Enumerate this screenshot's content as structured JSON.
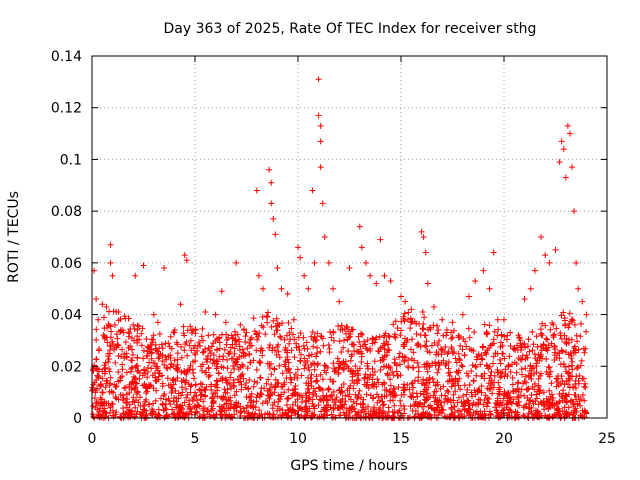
{
  "chart_data": {
    "type": "scatter",
    "title": "Day 363 of 2025, Rate Of TEC Index for receiver sthg",
    "xlabel": "GPS time / hours",
    "ylabel": "ROTI / TECUs",
    "xlim": [
      0,
      25
    ],
    "ylim": [
      0,
      0.14
    ],
    "xticks": [
      0,
      5,
      10,
      15,
      20,
      25
    ],
    "xtick_labels": [
      "0",
      "5",
      "10",
      "15",
      "20",
      "25"
    ],
    "yticks": [
      0,
      0.02,
      0.04,
      0.06,
      0.08,
      0.1,
      0.12,
      0.14
    ],
    "ytick_labels": [
      "0",
      "0.02",
      "0.04",
      "0.06",
      "0.08",
      "0.1",
      "0.12",
      "0.14"
    ],
    "grid": true,
    "marker": "+",
    "color": "#ff0000",
    "series": [
      {
        "name": "ROTI",
        "points": [
          [
            0.1,
            0.057
          ],
          [
            0.2,
            0.046
          ],
          [
            0.3,
            0.038
          ],
          [
            0.5,
            0.044
          ],
          [
            0.7,
            0.043
          ],
          [
            0.9,
            0.067
          ],
          [
            0.9,
            0.06
          ],
          [
            1.0,
            0.055
          ],
          [
            1.5,
            0.034
          ],
          [
            2.0,
            0.036
          ],
          [
            2.1,
            0.055
          ],
          [
            2.5,
            0.059
          ],
          [
            3.0,
            0.04
          ],
          [
            3.2,
            0.037
          ],
          [
            3.5,
            0.058
          ],
          [
            4.0,
            0.033
          ],
          [
            4.3,
            0.044
          ],
          [
            4.5,
            0.063
          ],
          [
            4.6,
            0.061
          ],
          [
            5.0,
            0.028
          ],
          [
            5.5,
            0.041
          ],
          [
            6.0,
            0.04
          ],
          [
            6.3,
            0.049
          ],
          [
            6.5,
            0.037
          ],
          [
            7.0,
            0.06
          ],
          [
            7.2,
            0.036
          ],
          [
            7.5,
            0.033
          ],
          [
            8.0,
            0.088
          ],
          [
            8.1,
            0.055
          ],
          [
            8.3,
            0.05
          ],
          [
            8.6,
            0.096
          ],
          [
            8.7,
            0.091
          ],
          [
            8.7,
            0.083
          ],
          [
            8.8,
            0.077
          ],
          [
            8.9,
            0.071
          ],
          [
            9.0,
            0.058
          ],
          [
            9.2,
            0.05
          ],
          [
            9.5,
            0.048
          ],
          [
            9.8,
            0.038
          ],
          [
            10.0,
            0.066
          ],
          [
            10.1,
            0.062
          ],
          [
            10.3,
            0.055
          ],
          [
            10.5,
            0.05
          ],
          [
            10.7,
            0.088
          ],
          [
            10.8,
            0.06
          ],
          [
            11.0,
            0.131
          ],
          [
            11.0,
            0.117
          ],
          [
            11.1,
            0.113
          ],
          [
            11.1,
            0.107
          ],
          [
            11.1,
            0.097
          ],
          [
            11.2,
            0.083
          ],
          [
            11.3,
            0.07
          ],
          [
            11.5,
            0.06
          ],
          [
            11.7,
            0.05
          ],
          [
            12.0,
            0.045
          ],
          [
            12.5,
            0.058
          ],
          [
            13.0,
            0.074
          ],
          [
            13.1,
            0.066
          ],
          [
            13.3,
            0.06
          ],
          [
            13.5,
            0.055
          ],
          [
            13.8,
            0.052
          ],
          [
            14.0,
            0.069
          ],
          [
            14.2,
            0.055
          ],
          [
            14.5,
            0.053
          ],
          [
            15.0,
            0.047
          ],
          [
            15.2,
            0.045
          ],
          [
            15.5,
            0.042
          ],
          [
            16.0,
            0.072
          ],
          [
            16.1,
            0.07
          ],
          [
            16.2,
            0.064
          ],
          [
            16.3,
            0.052
          ],
          [
            16.6,
            0.043
          ],
          [
            17.0,
            0.038
          ],
          [
            17.5,
            0.037
          ],
          [
            18.0,
            0.04
          ],
          [
            18.3,
            0.047
          ],
          [
            18.6,
            0.053
          ],
          [
            19.0,
            0.057
          ],
          [
            19.3,
            0.05
          ],
          [
            19.5,
            0.064
          ],
          [
            19.7,
            0.038
          ],
          [
            20.0,
            0.038
          ],
          [
            20.3,
            0.033
          ],
          [
            20.7,
            0.032
          ],
          [
            21.0,
            0.046
          ],
          [
            21.3,
            0.05
          ],
          [
            21.5,
            0.057
          ],
          [
            21.8,
            0.07
          ],
          [
            22.0,
            0.063
          ],
          [
            22.2,
            0.06
          ],
          [
            22.5,
            0.065
          ],
          [
            22.7,
            0.099
          ],
          [
            22.8,
            0.107
          ],
          [
            22.9,
            0.104
          ],
          [
            23.0,
            0.093
          ],
          [
            23.1,
            0.113
          ],
          [
            23.2,
            0.11
          ],
          [
            23.3,
            0.097
          ],
          [
            23.4,
            0.08
          ],
          [
            23.5,
            0.06
          ],
          [
            23.6,
            0.05
          ],
          [
            23.8,
            0.045
          ],
          [
            24.0,
            0.04
          ]
        ],
        "baseline_band": [
          0.0,
          0.03
        ]
      }
    ]
  }
}
